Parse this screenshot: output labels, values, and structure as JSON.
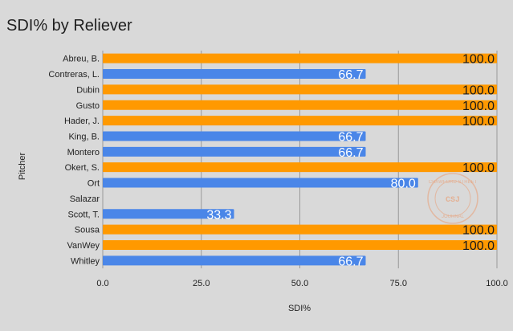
{
  "chart_data": {
    "type": "bar",
    "orientation": "horizontal",
    "title": "SDI% by Reliever",
    "xlabel": "SDI%",
    "ylabel": "Pitcher",
    "xlim": [
      0,
      100
    ],
    "x_ticks": [
      "0.0",
      "25.0",
      "50.0",
      "75.0",
      "100.0"
    ],
    "x_tick_values": [
      0,
      25,
      50,
      75,
      100
    ],
    "grid": true,
    "categories": [
      "Abreu, B.",
      "Contreras, L.",
      "Dubin",
      "Gusto",
      "Hader, J.",
      "King, B.",
      "Montero",
      "Okert, S.",
      "Ort",
      "Salazar",
      "Scott, T.",
      "Sousa",
      "VanWey",
      "Whitley"
    ],
    "values": [
      100.0,
      66.7,
      100.0,
      100.0,
      100.0,
      66.7,
      66.7,
      100.0,
      80.0,
      0,
      33.3,
      100.0,
      100.0,
      66.7
    ],
    "data_labels": [
      "100.0",
      "66.7",
      "100.0",
      "100.0",
      "100.0",
      "66.7",
      "66.7",
      "100.0",
      "80.0",
      "",
      "33.3",
      "100.0",
      "100.0",
      "66.7"
    ],
    "colors": {
      "full": "#ff9900",
      "partial": "#4a86e8",
      "background": "#d9d9d9",
      "grid": "#999999"
    },
    "watermark": {
      "text_top": "CRAWFORD STREET",
      "text_center": "CSJ",
      "text_bottom": "JOURNAL"
    }
  }
}
